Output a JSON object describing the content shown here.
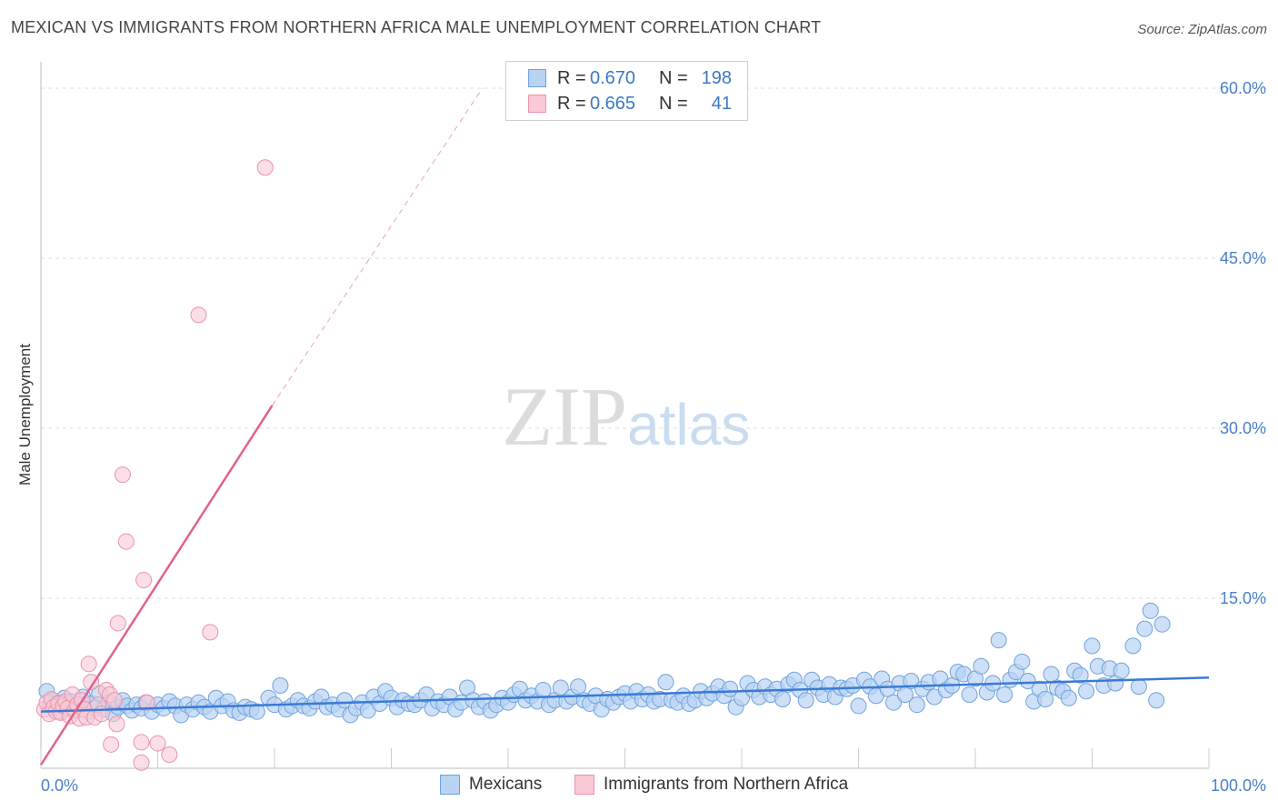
{
  "header": {
    "title": "MEXICAN VS IMMIGRANTS FROM NORTHERN AFRICA MALE UNEMPLOYMENT CORRELATION CHART",
    "source": "Source: ZipAtlas.com"
  },
  "watermark": {
    "zip": "ZIP",
    "atlas": "atlas"
  },
  "legend_top": [
    {
      "r_label": "R =",
      "r_value": "0.670",
      "n_label": "N =",
      "n_value": "198"
    },
    {
      "r_label": "R =",
      "r_value": "0.665",
      "n_label": "N =",
      "n_value": "41"
    }
  ],
  "legend_bottom": [
    "Mexicans",
    "Immigrants from Northern Africa"
  ],
  "colors": {
    "blue_fill": "#b9d3f3",
    "blue_stroke": "#6fa2dd",
    "blue_line": "#3a7bd5",
    "pink_fill": "#f9c9d6",
    "pink_stroke": "#ea93ad",
    "pink_line": "#e0628d",
    "axis_text": "#4a7fc9",
    "grid": "#dddddd"
  },
  "chart_data": {
    "type": "scatter",
    "title": "MEXICAN VS IMMIGRANTS FROM NORTHERN AFRICA MALE UNEMPLOYMENT CORRELATION CHART",
    "xlabel": "",
    "ylabel": "Male Unemployment",
    "xlim": [
      0,
      100
    ],
    "ylim": [
      0,
      60
    ],
    "x_tick_labels": [
      "0.0%",
      "100.0%"
    ],
    "y_tick_labels": [
      "15.0%",
      "30.0%",
      "45.0%",
      "60.0%"
    ],
    "y_ticks": [
      15,
      30,
      45,
      60
    ],
    "grid": true,
    "legend_position": "top-center",
    "series": [
      {
        "name": "Mexicans",
        "r": 0.67,
        "n": 198,
        "trend": {
          "x": [
            0,
            100
          ],
          "y": [
            5.0,
            8.0
          ]
        },
        "points": [
          [
            0.5,
            6.8
          ],
          [
            0.8,
            5.5
          ],
          [
            1.0,
            6.0
          ],
          [
            1.2,
            5.2
          ],
          [
            1.5,
            5.8
          ],
          [
            1.8,
            5.0
          ],
          [
            2.0,
            6.2
          ],
          [
            2.3,
            5.4
          ],
          [
            2.6,
            5.9
          ],
          [
            3.0,
            5.1
          ],
          [
            3.3,
            5.6
          ],
          [
            3.6,
            6.3
          ],
          [
            4.0,
            5.0
          ],
          [
            4.3,
            5.7
          ],
          [
            4.6,
            5.3
          ],
          [
            5.0,
            6.6
          ],
          [
            5.4,
            5.2
          ],
          [
            5.8,
            5.8
          ],
          [
            6.2,
            4.8
          ],
          [
            6.6,
            5.4
          ],
          [
            7.0,
            6.0
          ],
          [
            7.4,
            5.5
          ],
          [
            7.8,
            5.1
          ],
          [
            8.2,
            5.6
          ],
          [
            8.6,
            5.3
          ],
          [
            9.0,
            5.8
          ],
          [
            9.5,
            5.0
          ],
          [
            10.0,
            5.6
          ],
          [
            10.5,
            5.3
          ],
          [
            11.0,
            5.9
          ],
          [
            11.5,
            5.5
          ],
          [
            12.0,
            4.7
          ],
          [
            12.5,
            5.6
          ],
          [
            13.0,
            5.2
          ],
          [
            13.5,
            5.8
          ],
          [
            14.0,
            5.4
          ],
          [
            14.5,
            5.0
          ],
          [
            15.0,
            6.2
          ],
          [
            15.5,
            5.5
          ],
          [
            16.0,
            5.9
          ],
          [
            16.5,
            5.1
          ],
          [
            17.0,
            4.9
          ],
          [
            17.5,
            5.4
          ],
          [
            18.0,
            5.2
          ],
          [
            18.5,
            5.0
          ],
          [
            19.5,
            6.2
          ],
          [
            20.0,
            5.6
          ],
          [
            20.5,
            7.3
          ],
          [
            21.0,
            5.2
          ],
          [
            21.5,
            5.5
          ],
          [
            22.0,
            6.0
          ],
          [
            22.5,
            5.5
          ],
          [
            23.0,
            5.3
          ],
          [
            23.5,
            5.9
          ],
          [
            24.0,
            6.3
          ],
          [
            24.5,
            5.4
          ],
          [
            25.0,
            5.6
          ],
          [
            25.5,
            5.2
          ],
          [
            26.0,
            6.0
          ],
          [
            26.5,
            4.7
          ],
          [
            27.0,
            5.3
          ],
          [
            27.5,
            5.8
          ],
          [
            28.0,
            5.1
          ],
          [
            28.5,
            6.3
          ],
          [
            29.0,
            5.7
          ],
          [
            29.5,
            6.8
          ],
          [
            30.0,
            6.2
          ],
          [
            30.5,
            5.4
          ],
          [
            31.0,
            6.0
          ],
          [
            31.5,
            5.7
          ],
          [
            32.0,
            5.6
          ],
          [
            32.5,
            6.0
          ],
          [
            33.0,
            6.5
          ],
          [
            33.5,
            5.3
          ],
          [
            34.0,
            5.9
          ],
          [
            34.5,
            5.6
          ],
          [
            35.0,
            6.3
          ],
          [
            35.5,
            5.2
          ],
          [
            36.0,
            5.8
          ],
          [
            36.5,
            7.1
          ],
          [
            37.0,
            6.0
          ],
          [
            37.5,
            5.4
          ],
          [
            38.0,
            5.9
          ],
          [
            38.5,
            5.1
          ],
          [
            39.0,
            5.6
          ],
          [
            39.5,
            6.2
          ],
          [
            40.0,
            5.8
          ],
          [
            40.5,
            6.5
          ],
          [
            41.0,
            7.0
          ],
          [
            41.5,
            6.0
          ],
          [
            42.0,
            6.4
          ],
          [
            42.5,
            5.9
          ],
          [
            43.0,
            6.9
          ],
          [
            43.5,
            5.6
          ],
          [
            44.0,
            6.0
          ],
          [
            44.5,
            7.1
          ],
          [
            45.0,
            5.9
          ],
          [
            45.5,
            6.3
          ],
          [
            46.0,
            7.2
          ],
          [
            46.5,
            6.0
          ],
          [
            47.0,
            5.7
          ],
          [
            47.5,
            6.4
          ],
          [
            48.0,
            5.2
          ],
          [
            48.5,
            6.1
          ],
          [
            49.0,
            5.8
          ],
          [
            49.5,
            6.3
          ],
          [
            50.0,
            6.6
          ],
          [
            50.5,
            5.9
          ],
          [
            51.0,
            6.8
          ],
          [
            51.5,
            6.1
          ],
          [
            52.0,
            6.5
          ],
          [
            52.5,
            5.9
          ],
          [
            53.0,
            6.1
          ],
          [
            53.5,
            7.6
          ],
          [
            54.0,
            6.0
          ],
          [
            54.5,
            5.8
          ],
          [
            55.0,
            6.4
          ],
          [
            55.5,
            5.7
          ],
          [
            56.0,
            6.0
          ],
          [
            56.5,
            6.8
          ],
          [
            57.0,
            6.2
          ],
          [
            57.5,
            6.6
          ],
          [
            58.0,
            7.2
          ],
          [
            58.5,
            6.4
          ],
          [
            59.0,
            7.0
          ],
          [
            59.5,
            5.4
          ],
          [
            60.0,
            6.2
          ],
          [
            60.5,
            7.5
          ],
          [
            61.0,
            6.9
          ],
          [
            61.5,
            6.3
          ],
          [
            62.0,
            7.2
          ],
          [
            62.5,
            6.5
          ],
          [
            63.0,
            7.0
          ],
          [
            63.5,
            6.1
          ],
          [
            64.0,
            7.4
          ],
          [
            64.5,
            7.8
          ],
          [
            65.0,
            6.9
          ],
          [
            65.5,
            6.0
          ],
          [
            66.0,
            7.8
          ],
          [
            66.5,
            7.1
          ],
          [
            67.0,
            6.5
          ],
          [
            67.5,
            7.4
          ],
          [
            68.0,
            6.3
          ],
          [
            68.5,
            7.1
          ],
          [
            69.0,
            7.0
          ],
          [
            69.5,
            7.3
          ],
          [
            70.0,
            5.5
          ],
          [
            70.5,
            7.8
          ],
          [
            71.0,
            7.2
          ],
          [
            71.5,
            6.4
          ],
          [
            72.0,
            7.9
          ],
          [
            72.5,
            7.0
          ],
          [
            73.0,
            5.8
          ],
          [
            73.5,
            7.5
          ],
          [
            74.0,
            6.5
          ],
          [
            74.5,
            7.7
          ],
          [
            75.0,
            5.6
          ],
          [
            75.5,
            7.0
          ],
          [
            76.0,
            7.6
          ],
          [
            76.5,
            6.3
          ],
          [
            77.0,
            7.9
          ],
          [
            77.5,
            6.9
          ],
          [
            78.0,
            7.3
          ],
          [
            78.5,
            8.5
          ],
          [
            79.0,
            8.3
          ],
          [
            79.5,
            6.5
          ],
          [
            80.0,
            7.9
          ],
          [
            80.5,
            9.0
          ],
          [
            81.0,
            6.7
          ],
          [
            81.5,
            7.5
          ],
          [
            82.0,
            11.3
          ],
          [
            82.5,
            6.5
          ],
          [
            83.0,
            7.8
          ],
          [
            83.5,
            8.5
          ],
          [
            84.0,
            9.4
          ],
          [
            84.5,
            7.7
          ],
          [
            85.0,
            5.9
          ],
          [
            85.5,
            7.0
          ],
          [
            86.0,
            6.1
          ],
          [
            86.5,
            8.3
          ],
          [
            87.0,
            7.1
          ],
          [
            87.5,
            6.8
          ],
          [
            88.0,
            6.2
          ],
          [
            88.5,
            8.6
          ],
          [
            89.0,
            8.2
          ],
          [
            89.5,
            6.8
          ],
          [
            90.0,
            10.8
          ],
          [
            90.5,
            9.0
          ],
          [
            91.0,
            7.3
          ],
          [
            91.5,
            8.8
          ],
          [
            92.0,
            7.5
          ],
          [
            92.5,
            8.6
          ],
          [
            93.5,
            10.8
          ],
          [
            94.0,
            7.2
          ],
          [
            94.5,
            12.3
          ],
          [
            95.0,
            13.9
          ],
          [
            95.5,
            6.0
          ],
          [
            96.0,
            12.7
          ]
        ]
      },
      {
        "name": "Immigrants from Northern Africa",
        "r": 0.665,
        "n": 41,
        "trend": {
          "x": [
            0,
            19.8
          ],
          "y": [
            0.3,
            32.0
          ],
          "dashed_to": [
            37.8,
            60
          ]
        },
        "points": [
          [
            0.3,
            5.2
          ],
          [
            0.5,
            5.8
          ],
          [
            0.7,
            4.8
          ],
          [
            0.9,
            6.1
          ],
          [
            1.1,
            5.4
          ],
          [
            1.3,
            5.0
          ],
          [
            1.5,
            5.7
          ],
          [
            1.7,
            4.9
          ],
          [
            1.9,
            5.5
          ],
          [
            2.1,
            5.9
          ],
          [
            2.3,
            5.3
          ],
          [
            2.5,
            4.6
          ],
          [
            2.7,
            6.5
          ],
          [
            2.9,
            5.1
          ],
          [
            3.1,
            5.6
          ],
          [
            3.3,
            4.4
          ],
          [
            3.5,
            6.0
          ],
          [
            3.7,
            5.2
          ],
          [
            3.9,
            4.5
          ],
          [
            4.1,
            9.2
          ],
          [
            4.3,
            7.6
          ],
          [
            4.6,
            4.5
          ],
          [
            4.9,
            5.6
          ],
          [
            5.2,
            4.8
          ],
          [
            5.6,
            6.9
          ],
          [
            5.9,
            6.5
          ],
          [
            6.3,
            6.0
          ],
          [
            6.5,
            3.9
          ],
          [
            6.0,
            2.1
          ],
          [
            6.6,
            12.8
          ],
          [
            7.0,
            25.9
          ],
          [
            7.3,
            20.0
          ],
          [
            8.6,
            2.3
          ],
          [
            8.6,
            0.5
          ],
          [
            8.8,
            16.6
          ],
          [
            9.1,
            5.8
          ],
          [
            10.0,
            2.2
          ],
          [
            11.0,
            1.2
          ],
          [
            13.5,
            40.0
          ],
          [
            14.5,
            12.0
          ],
          [
            19.2,
            53.0
          ]
        ]
      }
    ]
  }
}
